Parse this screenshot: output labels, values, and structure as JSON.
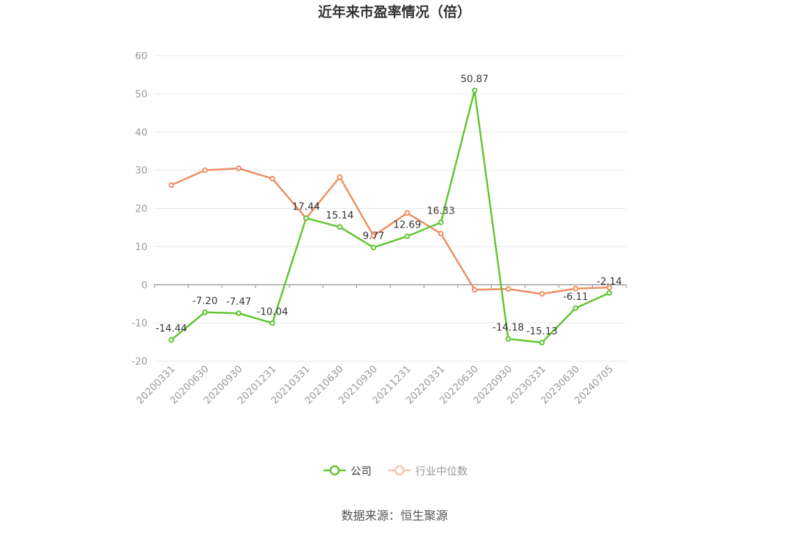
{
  "chart_data": {
    "type": "line",
    "title": "近年来市盈率情况（倍）",
    "x": [
      "20200331",
      "20200630",
      "20200930",
      "20201231",
      "20210331",
      "20210630",
      "20210930",
      "20211231",
      "20220331",
      "20220630",
      "20220930",
      "20230331",
      "20230630",
      "20240705"
    ],
    "ylim": [
      -20,
      60
    ],
    "yticks": [
      "60",
      "50",
      "40",
      "30",
      "20",
      "10",
      "0",
      "-10",
      "-20"
    ],
    "ytick_values": [
      60,
      50,
      40,
      30,
      20,
      10,
      0,
      -10,
      -20
    ],
    "grid": true,
    "legend_position": "bottom-center",
    "series": [
      {
        "name": "公司",
        "color": "#5cc52a",
        "values": [
          -14.44,
          -7.2,
          -7.47,
          -10.04,
          17.44,
          15.14,
          9.77,
          12.69,
          16.33,
          50.87,
          -14.18,
          -15.13,
          -6.11,
          -2.14
        ],
        "labels": [
          "-14.44",
          "-7.20",
          "-7.47",
          "-10.04",
          "17.44",
          "15.14",
          "9.77",
          "12.69",
          "16.33",
          "50.87",
          "-14.18",
          "-15.13",
          "-6.11",
          "-2.14"
        ]
      },
      {
        "name": "行业中位数",
        "color": "#f08a5d",
        "values": [
          26.1,
          30.0,
          30.5,
          27.8,
          17.4,
          28.2,
          12.8,
          18.8,
          13.4,
          -1.3,
          -1.1,
          -2.4,
          -1.0,
          -0.7
        ]
      }
    ]
  },
  "footer": {
    "source": "数据来源：恒生聚源"
  }
}
